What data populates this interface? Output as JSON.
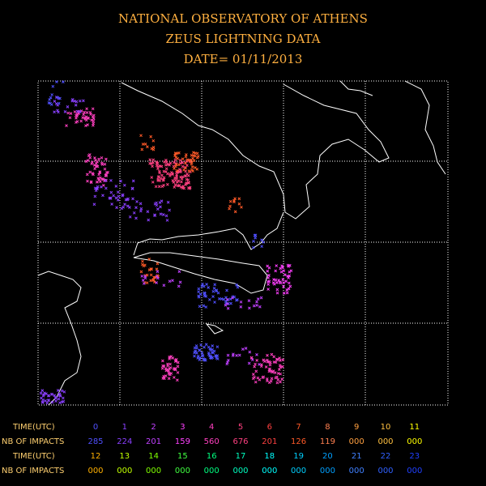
{
  "title": [
    "NATIONAL OBSERVATORY OF ATHENS",
    "ZEUS LIGHTNING DATA",
    "DATE= 01/11/2013"
  ],
  "table": {
    "time_label": "TIME(UTC)",
    "impacts_label": "NB OF IMPACTS",
    "blocks": [
      {
        "times": [
          "0",
          "1",
          "2",
          "3",
          "4",
          "5",
          "6",
          "7",
          "8",
          "9",
          "10",
          "11"
        ],
        "impacts": [
          "285",
          "224",
          "201",
          "159",
          "560",
          "676",
          "201",
          "126",
          "119",
          "000",
          "000",
          "000"
        ],
        "colors": [
          "#5050ff",
          "#8a40ff",
          "#c040ff",
          "#ff40ff",
          "#ff40c0",
          "#ff4080",
          "#ff4040",
          "#ff5a28",
          "#ff8050",
          "#ffa040",
          "#ffc040",
          "#ffff00"
        ]
      },
      {
        "times": [
          "12",
          "13",
          "14",
          "15",
          "16",
          "17",
          "18",
          "19",
          "20",
          "21",
          "22",
          "23"
        ],
        "impacts": [
          "000",
          "000",
          "000",
          "000",
          "000",
          "000",
          "000",
          "000",
          "000",
          "000",
          "000",
          "000"
        ],
        "colors": [
          "#ffb000",
          "#c0ff00",
          "#80ff00",
          "#40ff40",
          "#00ff80",
          "#00ffc0",
          "#00ffff",
          "#00d0ff",
          "#00a0ff",
          "#4080ff",
          "#3060ff",
          "#2040ff"
        ]
      }
    ]
  }
}
